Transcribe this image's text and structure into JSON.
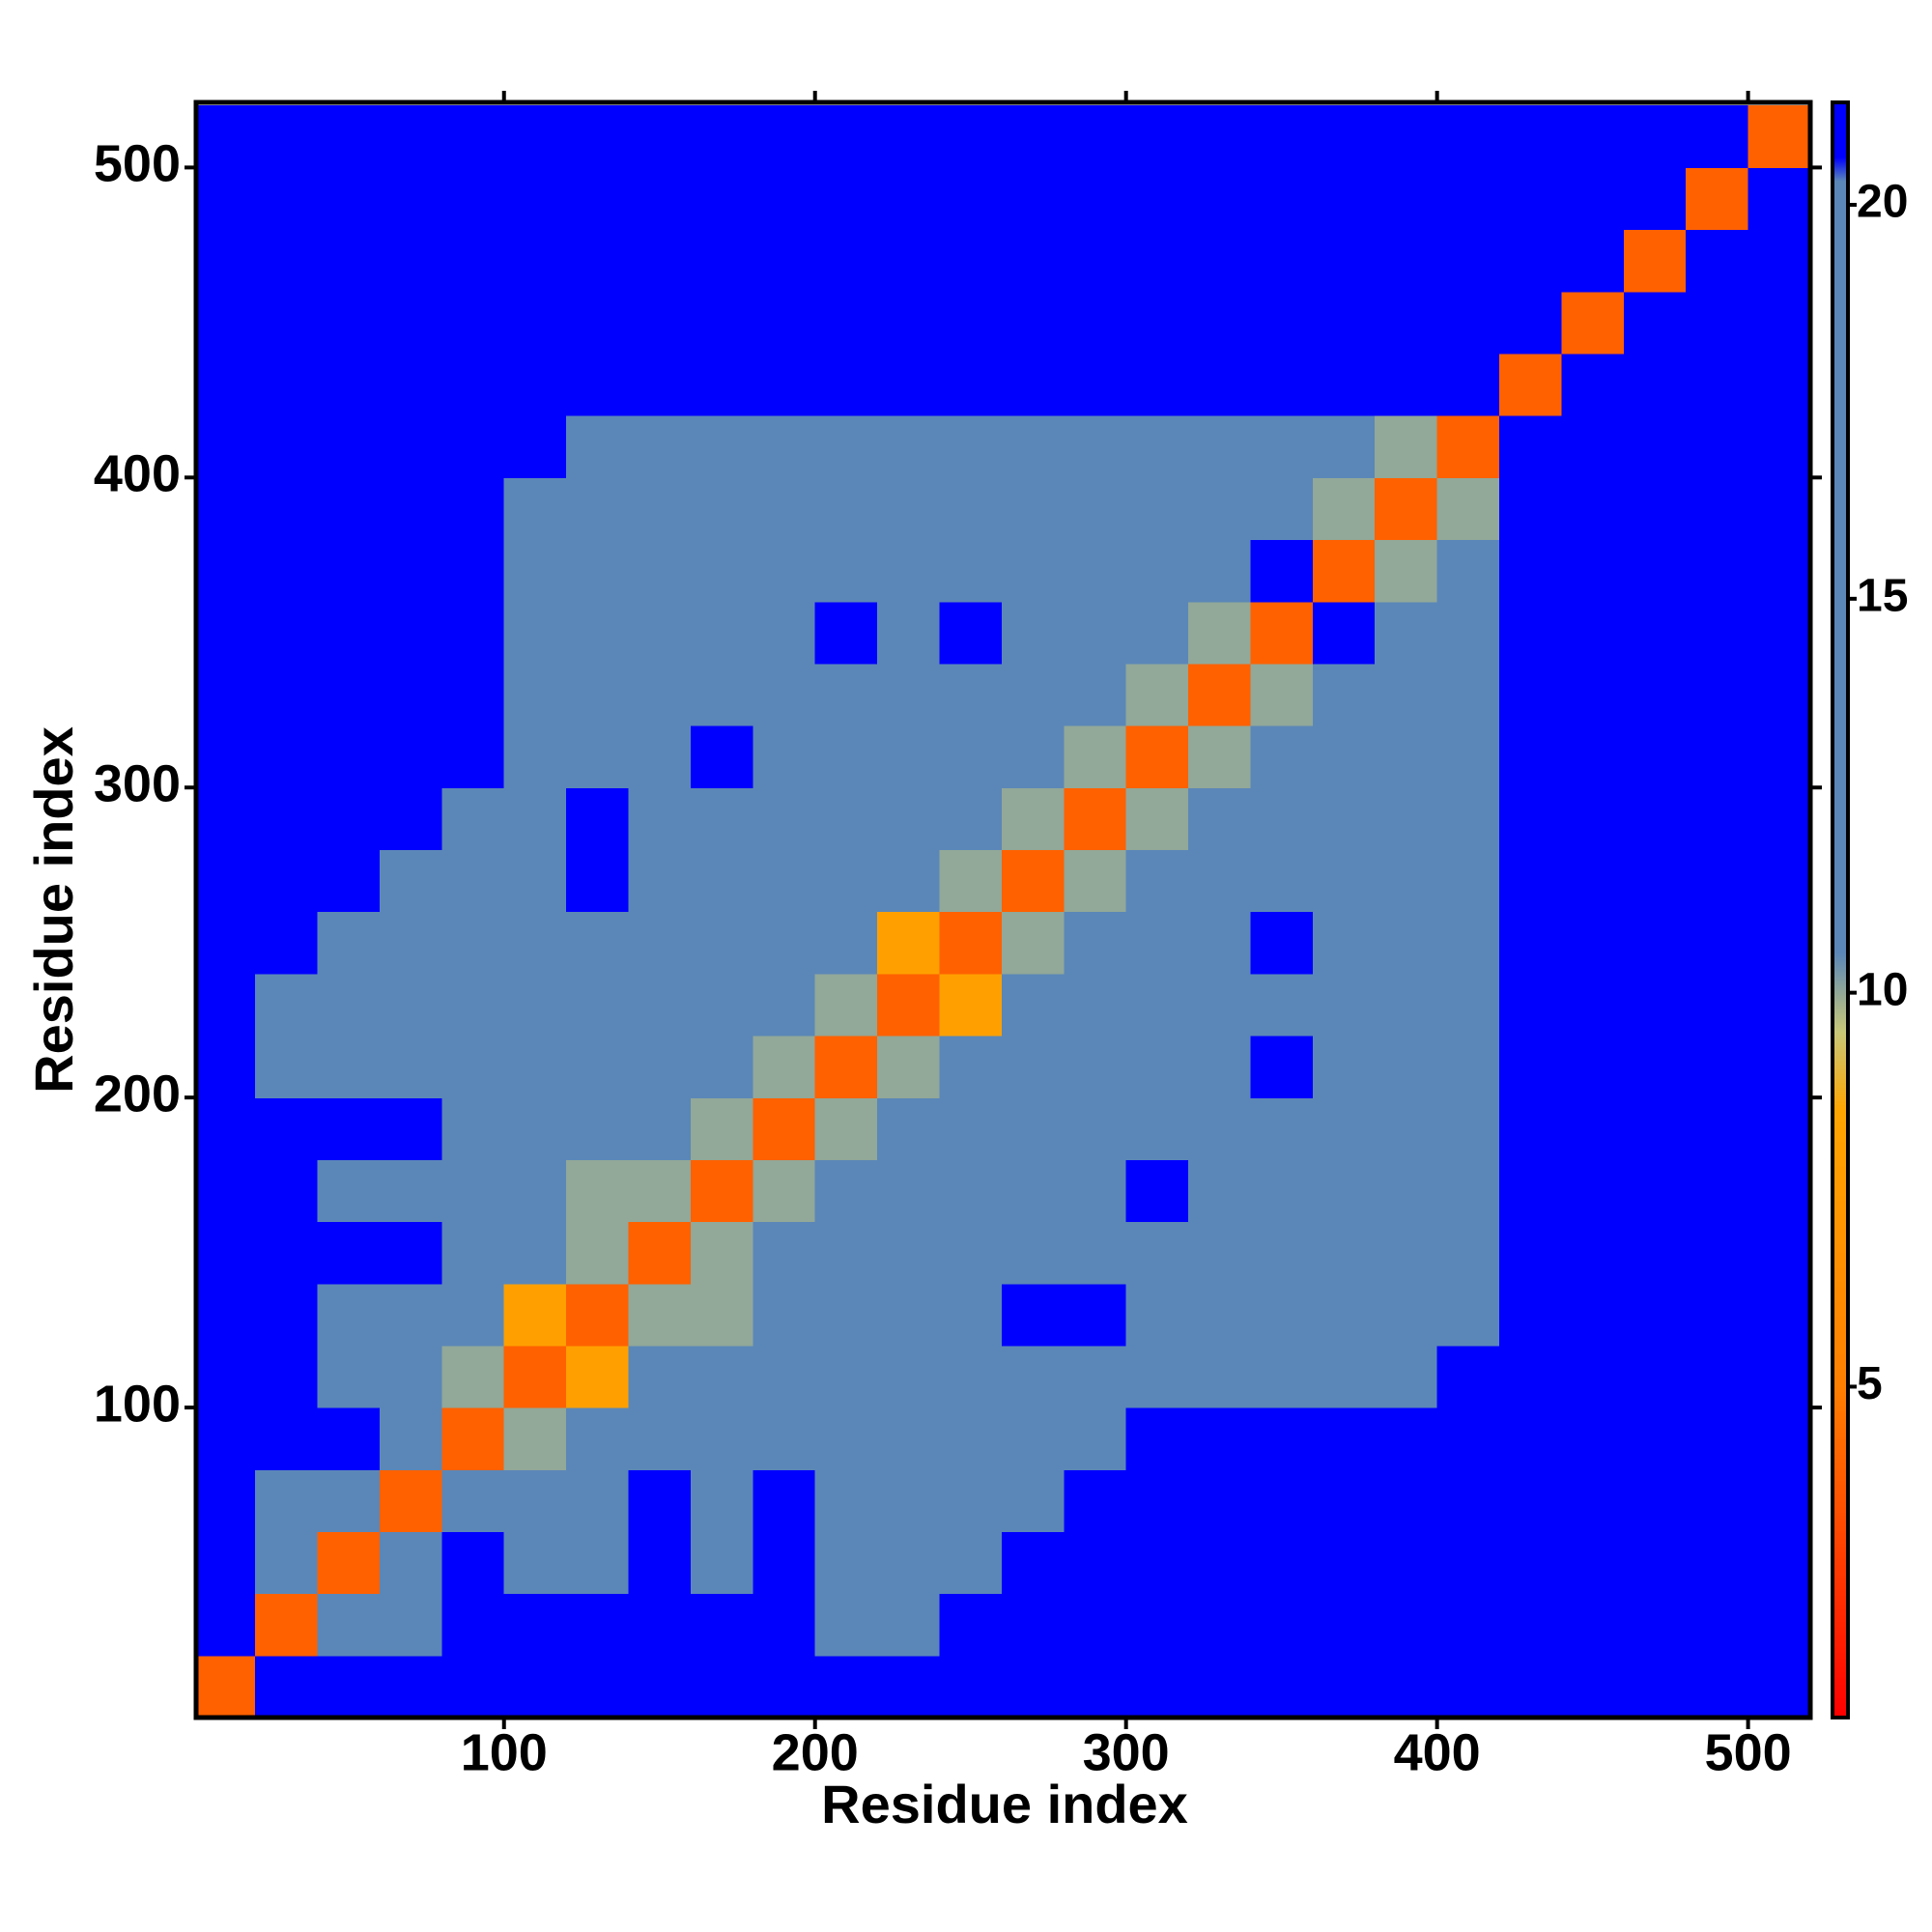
{
  "chart_data": {
    "type": "heatmap",
    "x_label": "Residue index",
    "y_label": "Residue index",
    "x_bins": [
      0,
      20,
      40,
      60,
      80,
      100,
      120,
      140,
      160,
      180,
      200,
      220,
      240,
      260,
      280,
      300,
      320,
      340,
      360,
      380,
      400,
      420,
      440,
      460,
      480,
      500,
      520
    ],
    "y_bins": [
      0,
      20,
      40,
      60,
      80,
      100,
      120,
      140,
      160,
      180,
      200,
      220,
      240,
      260,
      280,
      300,
      320,
      340,
      360,
      380,
      400,
      420,
      440,
      460,
      480,
      500,
      520
    ],
    "values": [
      [
        4,
        21,
        21,
        21,
        21,
        21,
        21,
        21,
        21,
        21,
        21,
        21,
        21,
        21,
        21,
        21,
        21,
        21,
        21,
        21,
        21,
        21,
        21,
        21,
        21,
        21
      ],
      [
        21,
        4,
        14,
        16,
        21,
        21,
        21,
        21,
        21,
        21,
        16,
        16,
        21,
        21,
        21,
        21,
        21,
        21,
        21,
        21,
        21,
        21,
        21,
        21,
        21,
        21
      ],
      [
        21,
        14,
        4,
        14,
        21,
        12,
        12,
        21,
        16,
        21,
        16,
        16,
        16,
        21,
        21,
        21,
        21,
        21,
        21,
        21,
        21,
        21,
        21,
        21,
        21,
        21
      ],
      [
        21,
        16,
        14,
        4,
        14,
        16,
        16,
        21,
        16,
        21,
        16,
        16,
        16,
        16,
        21,
        21,
        21,
        21,
        21,
        21,
        21,
        21,
        21,
        21,
        21,
        21
      ],
      [
        21,
        21,
        21,
        14,
        4,
        10,
        16,
        16,
        16,
        16,
        16,
        16,
        16,
        16,
        16,
        21,
        21,
        21,
        21,
        21,
        21,
        21,
        21,
        21,
        21,
        21
      ],
      [
        21,
        21,
        12,
        16,
        10,
        4,
        8,
        12,
        16,
        16,
        16,
        16,
        16,
        16,
        16,
        16,
        16,
        16,
        16,
        16,
        21,
        21,
        21,
        21,
        21,
        21
      ],
      [
        21,
        21,
        12,
        16,
        16,
        8,
        4,
        10,
        10,
        12,
        16,
        16,
        16,
        21,
        21,
        16,
        16,
        16,
        16,
        16,
        16,
        21,
        21,
        21,
        21,
        21
      ],
      [
        21,
        21,
        21,
        21,
        16,
        12,
        10,
        4,
        10,
        16,
        16,
        16,
        12,
        16,
        16,
        16,
        16,
        16,
        16,
        16,
        16,
        21,
        21,
        21,
        21,
        21
      ],
      [
        21,
        21,
        16,
        16,
        16,
        16,
        10,
        10,
        4,
        10,
        16,
        12,
        16,
        16,
        16,
        21,
        16,
        16,
        16,
        16,
        16,
        21,
        21,
        21,
        21,
        21
      ],
      [
        21,
        21,
        21,
        21,
        16,
        16,
        12,
        16,
        10,
        4,
        10,
        12,
        16,
        16,
        16,
        16,
        16,
        16,
        16,
        16,
        16,
        21,
        21,
        21,
        21,
        21
      ],
      [
        21,
        16,
        16,
        16,
        16,
        16,
        16,
        16,
        16,
        10,
        4,
        10,
        16,
        16,
        12,
        16,
        16,
        21,
        16,
        12,
        16,
        21,
        21,
        21,
        21,
        21
      ],
      [
        21,
        16,
        16,
        16,
        16,
        16,
        16,
        16,
        12,
        12,
        10,
        4,
        8,
        16,
        12,
        16,
        16,
        16,
        16,
        16,
        16,
        21,
        21,
        21,
        21,
        21
      ],
      [
        21,
        21,
        16,
        16,
        16,
        16,
        16,
        12,
        16,
        16,
        16,
        8,
        4,
        10,
        16,
        16,
        16,
        21,
        16,
        16,
        16,
        21,
        21,
        21,
        21,
        21
      ],
      [
        21,
        21,
        21,
        16,
        16,
        16,
        21,
        16,
        16,
        16,
        16,
        16,
        10,
        4,
        10,
        12,
        12,
        16,
        16,
        16,
        16,
        21,
        21,
        21,
        21,
        21
      ],
      [
        21,
        21,
        21,
        21,
        16,
        16,
        21,
        16,
        16,
        16,
        12,
        12,
        16,
        10,
        4,
        10,
        16,
        16,
        12,
        12,
        16,
        21,
        21,
        21,
        21,
        21
      ],
      [
        21,
        21,
        21,
        21,
        21,
        16,
        16,
        16,
        21,
        16,
        16,
        16,
        16,
        12,
        10,
        4,
        10,
        16,
        16,
        12,
        16,
        21,
        21,
        21,
        21,
        21
      ],
      [
        21,
        21,
        21,
        21,
        21,
        16,
        16,
        16,
        16,
        16,
        16,
        16,
        16,
        12,
        16,
        10,
        4,
        10,
        16,
        16,
        16,
        21,
        21,
        21,
        21,
        21
      ],
      [
        21,
        21,
        21,
        21,
        21,
        16,
        16,
        16,
        16,
        16,
        21,
        16,
        21,
        16,
        16,
        16,
        10,
        4,
        21,
        16,
        16,
        21,
        21,
        21,
        21,
        21
      ],
      [
        21,
        21,
        21,
        21,
        21,
        16,
        16,
        16,
        16,
        16,
        16,
        16,
        16,
        16,
        12,
        16,
        16,
        21,
        4,
        10,
        16,
        21,
        21,
        21,
        21,
        21
      ],
      [
        21,
        21,
        21,
        21,
        21,
        16,
        16,
        16,
        16,
        16,
        12,
        16,
        16,
        16,
        12,
        12,
        16,
        16,
        10,
        4,
        10,
        21,
        21,
        21,
        21,
        21
      ],
      [
        21,
        21,
        21,
        21,
        21,
        21,
        16,
        16,
        16,
        16,
        16,
        16,
        16,
        16,
        16,
        16,
        16,
        16,
        16,
        10,
        4,
        21,
        21,
        21,
        21,
        21
      ],
      [
        21,
        21,
        21,
        21,
        21,
        21,
        21,
        21,
        21,
        21,
        21,
        21,
        21,
        21,
        21,
        21,
        21,
        21,
        21,
        21,
        21,
        4,
        21,
        21,
        21,
        21
      ],
      [
        21,
        21,
        21,
        21,
        21,
        21,
        21,
        21,
        21,
        21,
        21,
        21,
        21,
        21,
        21,
        21,
        21,
        21,
        21,
        21,
        21,
        21,
        4,
        21,
        21,
        21
      ],
      [
        21,
        21,
        21,
        21,
        21,
        21,
        21,
        21,
        21,
        21,
        21,
        21,
        21,
        21,
        21,
        21,
        21,
        21,
        21,
        21,
        21,
        21,
        21,
        4,
        21,
        21
      ],
      [
        21,
        21,
        21,
        21,
        21,
        21,
        21,
        21,
        21,
        21,
        21,
        21,
        21,
        21,
        21,
        21,
        21,
        21,
        21,
        21,
        21,
        21,
        21,
        21,
        4,
        21
      ],
      [
        21,
        21,
        21,
        21,
        21,
        21,
        21,
        21,
        21,
        21,
        21,
        21,
        21,
        21,
        21,
        21,
        21,
        21,
        21,
        21,
        21,
        21,
        21,
        21,
        21,
        4
      ]
    ],
    "xlim": [
      1,
      520
    ],
    "ylim": [
      0,
      521
    ],
    "xticks": [
      100,
      200,
      300,
      400,
      500
    ],
    "yticks": [
      100,
      200,
      300,
      400,
      500
    ],
    "clim": [
      0.8,
      21.3
    ],
    "cticks": [
      5,
      10,
      15,
      20
    ],
    "colorscale": [
      [
        0.8,
        "#ff0000"
      ],
      [
        5,
        "#ff7f00"
      ],
      [
        8.5,
        "#ffa500"
      ],
      [
        9.5,
        "#c8c878"
      ],
      [
        10.5,
        "#5b87b8"
      ],
      [
        20.3,
        "#5b87b8"
      ],
      [
        20.6,
        "#0000ff"
      ],
      [
        21.3,
        "#0000ff"
      ]
    ]
  }
}
